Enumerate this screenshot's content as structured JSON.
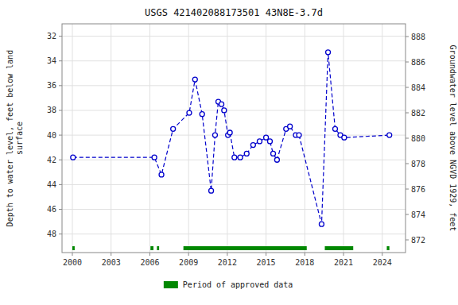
{
  "chart_data": {
    "type": "line",
    "title": "USGS 421402088173501 43N8E-3.7d",
    "ylabel": "Depth to water level, feet below land\nsurface",
    "y2label": "Groundwater level above NGVD 1929, feet",
    "x": [
      2000.05,
      2006.35,
      2006.9,
      2007.8,
      2009.05,
      2009.5,
      2010.05,
      2010.75,
      2011.05,
      2011.3,
      2011.55,
      2011.75,
      2012.05,
      2012.2,
      2012.55,
      2013.0,
      2013.5,
      2014.0,
      2014.5,
      2015.0,
      2015.3,
      2015.55,
      2015.85,
      2016.55,
      2016.85,
      2017.3,
      2017.55,
      2019.3,
      2019.8,
      2020.35,
      2020.75,
      2021.05,
      2024.55
    ],
    "series": [
      {
        "color": "#0000cc",
        "marker": "circle",
        "line_style": "dashed",
        "values": [
          41.8,
          41.8,
          43.2,
          39.5,
          38.2,
          35.5,
          38.3,
          44.5,
          40.0,
          37.3,
          37.5,
          38.0,
          40.0,
          39.8,
          41.8,
          41.8,
          41.5,
          40.8,
          40.5,
          40.2,
          40.5,
          41.5,
          42.0,
          39.5,
          39.3,
          40.0,
          40.0,
          47.2,
          33.3,
          39.5,
          40.0,
          40.2,
          40.0
        ]
      }
    ],
    "periods": {
      "name": "Period of approved data",
      "color": "#008800",
      "start": [
        2000.0,
        2006.05,
        2006.55,
        2008.6,
        2019.55,
        2024.35
      ],
      "end": [
        2000.18,
        2006.28,
        2006.72,
        2018.15,
        2021.75,
        2024.55
      ]
    },
    "xlim": [
      1999.2,
      2025.8
    ],
    "xticks": [
      2000,
      2003,
      2006,
      2009,
      2012,
      2015,
      2018,
      2021,
      2024
    ],
    "ylim": [
      49.5,
      31.0
    ],
    "yticks": [
      32,
      34,
      36,
      38,
      40,
      42,
      44,
      46,
      48
    ],
    "y2lim": [
      871.0,
      889.0
    ],
    "y2ticks": [
      872,
      874,
      876,
      878,
      880,
      882,
      884,
      886,
      888
    ],
    "grid": true,
    "legend": "bottom"
  }
}
